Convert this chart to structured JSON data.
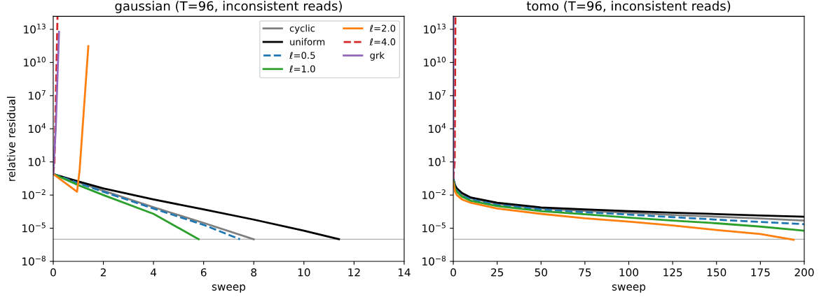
{
  "chart_data": [
    {
      "type": "line",
      "title": "gaussian (T=96, inconsistent reads)",
      "xlabel": "sweep",
      "ylabel": "relative residual",
      "log": "y",
      "xlim": [
        0,
        14
      ],
      "xticks": [
        0,
        2,
        4,
        6,
        8,
        10,
        12,
        14
      ],
      "ylim": [
        1e-08,
        150000000000000.0
      ],
      "yticks": [
        {
          "value": 1e-08,
          "label": "10$^{−8}$"
        },
        {
          "value": 1e-05,
          "label": "10$^{−5}$"
        },
        {
          "value": 0.01,
          "label": "10$^{−2}$"
        },
        {
          "value": 10,
          "label": "10$^{1}$"
        },
        {
          "value": 10000.0,
          "label": "10$^{4}$"
        },
        {
          "value": 10000000.0,
          "label": "10$^{7}$"
        },
        {
          "value": 10000000000.0,
          "label": "10$^{10}$"
        },
        {
          "value": 10000000000000.0,
          "label": "10$^{13}$"
        }
      ],
      "grid": false,
      "legend": "top right",
      "ref_lines": [
        {
          "axis": "y",
          "value": 1e-06,
          "color": "#b0b0b0"
        }
      ],
      "series": [
        {
          "name": "cyclic",
          "color": "#7f7f7f",
          "x": [
            0,
            1,
            2,
            4,
            6,
            8
          ],
          "values": [
            0.8,
            0.14,
            0.025,
            0.0008,
            3e-05,
            1e-06
          ]
        },
        {
          "name": "uniform",
          "color": "#000000",
          "x": [
            0,
            1,
            2,
            4,
            6,
            8,
            10,
            11.4
          ],
          "values": [
            0.8,
            0.17,
            0.04,
            0.004,
            0.0005,
            6e-05,
            6e-06,
            1e-06
          ]
        },
        {
          "name": "ℓ=0.5",
          "color": "#1f77b4",
          "line_style": "dashed",
          "x": [
            0,
            1,
            2,
            4,
            6,
            7.45
          ],
          "values": [
            0.8,
            0.12,
            0.02,
            0.0006,
            2e-05,
            1e-06
          ]
        },
        {
          "name": "ℓ=1.0",
          "color": "#2ca02c",
          "x": [
            0,
            1,
            2,
            4,
            5.8
          ],
          "values": [
            0.8,
            0.08,
            0.01,
            0.0002,
            1e-06
          ]
        },
        {
          "name": "ℓ=2.0",
          "color": "#ff7f0e",
          "x": [
            0,
            0.95,
            1.05,
            1.4
          ],
          "values": [
            0.8,
            0.02,
            1.5,
            300000000000.0
          ]
        },
        {
          "name": "ℓ=4.0",
          "color": "#d62728",
          "line_style": "dashed",
          "x": [
            0,
            0.05,
            0.17
          ],
          "values": [
            0.8,
            10,
            140000000000000.0
          ]
        },
        {
          "name": "grk",
          "color": "#9467bd",
          "x": [
            0,
            0.1,
            0.23
          ],
          "values": [
            0.8,
            10000.0,
            6000000000000.0
          ]
        }
      ]
    },
    {
      "type": "line",
      "title": "tomo (T=96, inconsistent reads)",
      "xlabel": "sweep",
      "log": "y",
      "xlim": [
        0,
        200
      ],
      "xticks": [
        0,
        25,
        50,
        75,
        100,
        125,
        150,
        175,
        200
      ],
      "ylim": [
        1e-08,
        150000000000000.0
      ],
      "yticks": [
        {
          "value": 1e-08,
          "label": "10$^{−8}$"
        },
        {
          "value": 1e-05,
          "label": "10$^{−5}$"
        },
        {
          "value": 0.01,
          "label": "10$^{−2}$"
        },
        {
          "value": 10,
          "label": "10$^{1}$"
        },
        {
          "value": 10000.0,
          "label": "10$^{4}$"
        },
        {
          "value": 10000000.0,
          "label": "10$^{7}$"
        },
        {
          "value": 10000000000.0,
          "label": "10$^{10}$"
        },
        {
          "value": 10000000000000.0,
          "label": "10$^{13}$"
        }
      ],
      "grid": false,
      "ref_lines": [
        {
          "axis": "y",
          "value": 1e-06,
          "color": "#b0b0b0"
        }
      ],
      "series": [
        {
          "color": "#7f7f7f",
          "x": [
            0,
            1,
            2,
            5,
            10,
            25,
            50,
            75,
            100,
            125,
            150,
            175,
            200
          ],
          "values": [
            0.3,
            0.06,
            0.03,
            0.01,
            0.005,
            0.0016,
            0.0006,
            0.00037,
            0.00025,
            0.00016,
            0.00011,
            7.5e-05,
            5e-05
          ]
        },
        {
          "color": "#000000",
          "x": [
            0,
            1,
            2,
            5,
            10,
            25,
            50,
            75,
            100,
            125,
            150,
            175,
            200
          ],
          "values": [
            0.3,
            0.08,
            0.04,
            0.015,
            0.006,
            0.002,
            0.00076,
            0.0005,
            0.00035,
            0.00025,
            0.00019,
            0.00014,
            0.00011
          ]
        },
        {
          "color": "#1f77b4",
          "line_style": "dashed",
          "x": [
            0,
            1,
            2,
            5,
            10,
            25,
            50,
            75,
            100,
            125,
            150,
            175,
            200
          ],
          "values": [
            0.25,
            0.05,
            0.025,
            0.009,
            0.004,
            0.0013,
            0.0005,
            0.00028,
            0.00017,
            0.0001,
            6e-05,
            3.7e-05,
            2.3e-05
          ]
        },
        {
          "color": "#2ca02c",
          "x": [
            0,
            1,
            2,
            5,
            10,
            25,
            50,
            75,
            100,
            125,
            150,
            175,
            200
          ],
          "values": [
            0.2,
            0.04,
            0.02,
            0.007,
            0.003,
            0.001,
            0.00035,
            0.00018,
            9e-05,
            5e-05,
            2.8e-05,
            1.4e-05,
            6e-06
          ]
        },
        {
          "color": "#ff7f0e",
          "x": [
            0,
            1,
            2,
            5,
            10,
            25,
            50,
            75,
            100,
            125,
            150,
            175,
            194
          ],
          "values": [
            0.15,
            0.02,
            0.01,
            0.004,
            0.002,
            0.0006,
            0.0002,
            8e-05,
            4e-05,
            1.8e-05,
            7e-06,
            3e-06,
            9e-07
          ]
        },
        {
          "color": "#d62728",
          "line_style": "dashed",
          "x": [
            0,
            0.8,
            1.2
          ],
          "values": [
            0.3,
            10,
            140000000000000.0
          ]
        },
        {
          "color": "#9467bd",
          "x": [
            0,
            0.05,
            0.1
          ],
          "values": [
            0.3,
            100,
            140000000000000.0
          ]
        }
      ]
    }
  ]
}
